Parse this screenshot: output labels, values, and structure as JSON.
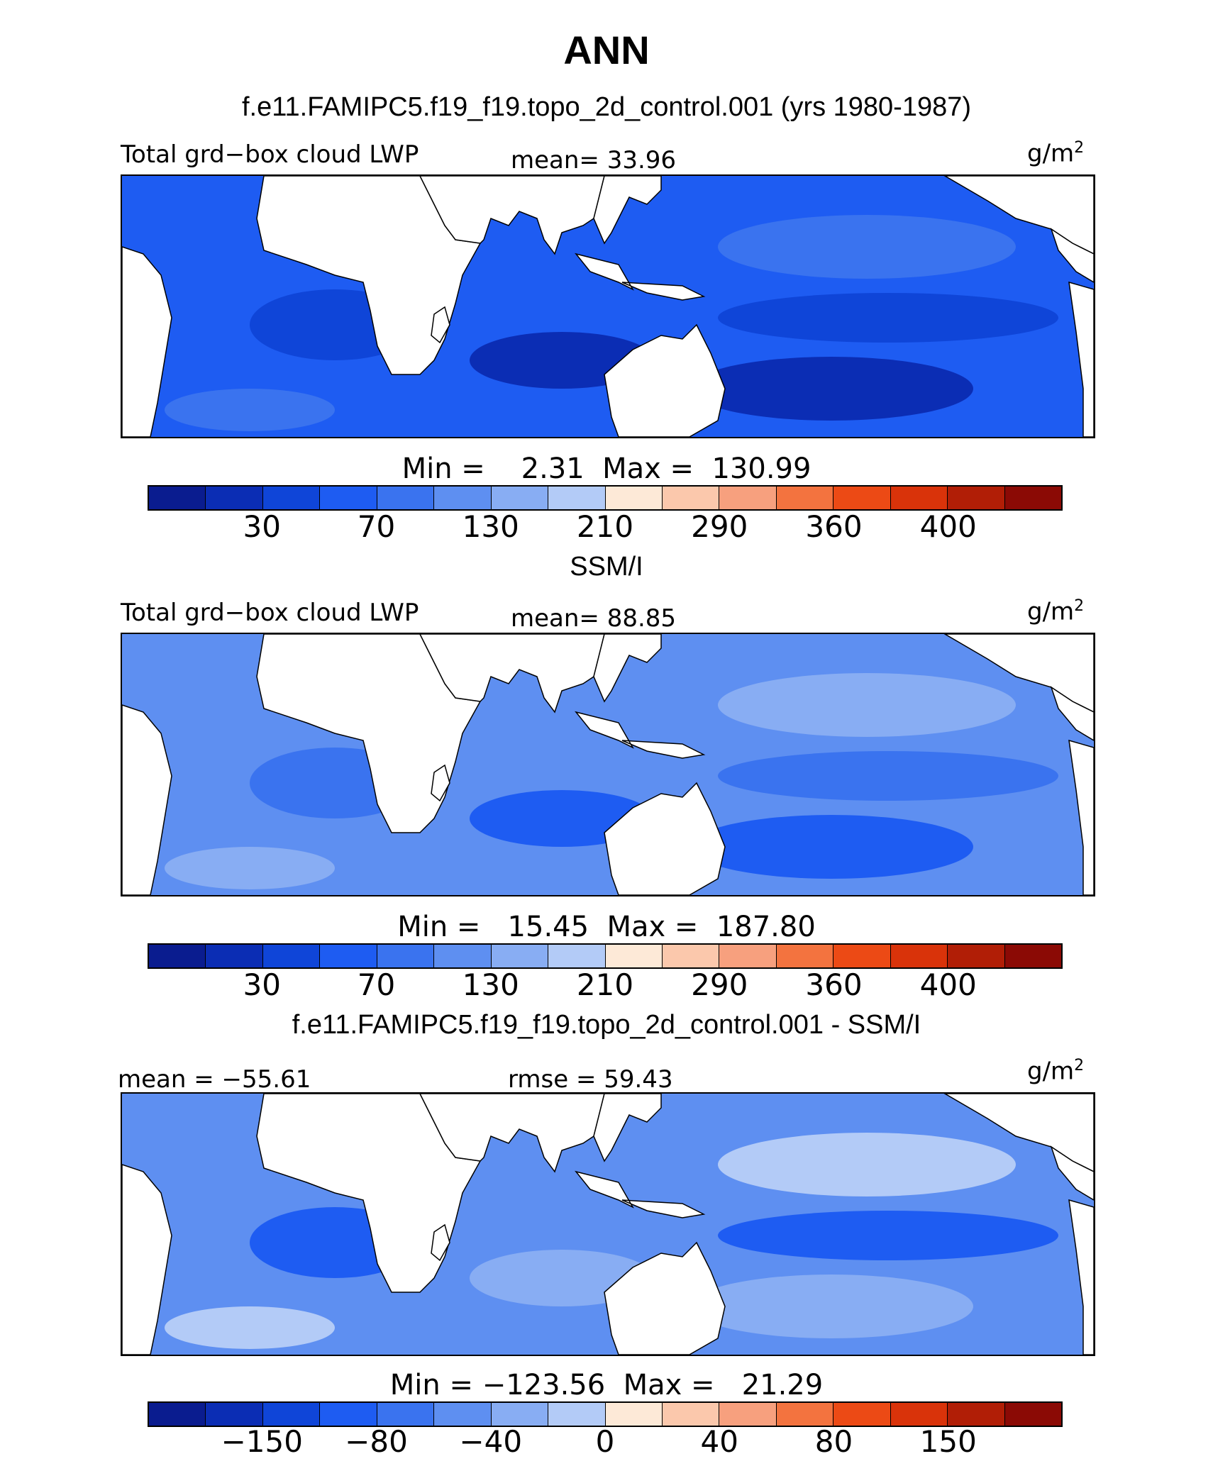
{
  "title": "ANN",
  "palette": [
    "#0a1c8f",
    "#0b2db4",
    "#0f45d8",
    "#1e5cf2",
    "#3a73ef",
    "#5e8ff1",
    "#88adf3",
    "#b3cbf7",
    "#d8e5fa",
    "#fde9d7",
    "#fbc8ac",
    "#f7a07e",
    "#f3733f",
    "#ec4a15",
    "#d9330a",
    "#b11e06",
    "#8b0a05"
  ],
  "panels": [
    {
      "header": "f.e11.FAMIPC5.f19_f19.topo_2d_control.001 (yrs 1980-1987)",
      "left_label": "Total grd−box cloud LWP",
      "center_label": "mean=  33.96",
      "unit_base": "g/m",
      "unit_sup": "2",
      "minmax": "Min =    2.31  Max =  130.99",
      "ticks": [
        "30",
        "70",
        "130",
        "210",
        "290",
        "360",
        "400"
      ],
      "base_color": "#1e5cf2",
      "fills": [
        "#0f45d8",
        "#0b2db4",
        "#3a73ef"
      ]
    },
    {
      "header": "SSM/I",
      "left_label": "Total grd−box cloud LWP",
      "center_label": "mean=  88.85",
      "unit_base": "g/m",
      "unit_sup": "2",
      "minmax": "Min =   15.45  Max =  187.80",
      "ticks": [
        "30",
        "70",
        "130",
        "210",
        "290",
        "360",
        "400"
      ],
      "base_color": "#5e8ff1",
      "fills": [
        "#3a73ef",
        "#1e5cf2",
        "#88adf3"
      ]
    },
    {
      "header": "f.e11.FAMIPC5.f19_f19.topo_2d_control.001 - SSM/I",
      "left_label": "mean = −55.61",
      "center_label": "rmse =  59.43",
      "unit_base": "g/m",
      "unit_sup": "2",
      "minmax": "Min = −123.56  Max =   21.29",
      "ticks": [
        "−150",
        "−80",
        "−40",
        "0",
        "40",
        "80",
        "150"
      ],
      "base_color": "#5e8ff1",
      "fills": [
        "#1e5cf2",
        "#88adf3",
        "#b3cbf7"
      ]
    }
  ]
}
